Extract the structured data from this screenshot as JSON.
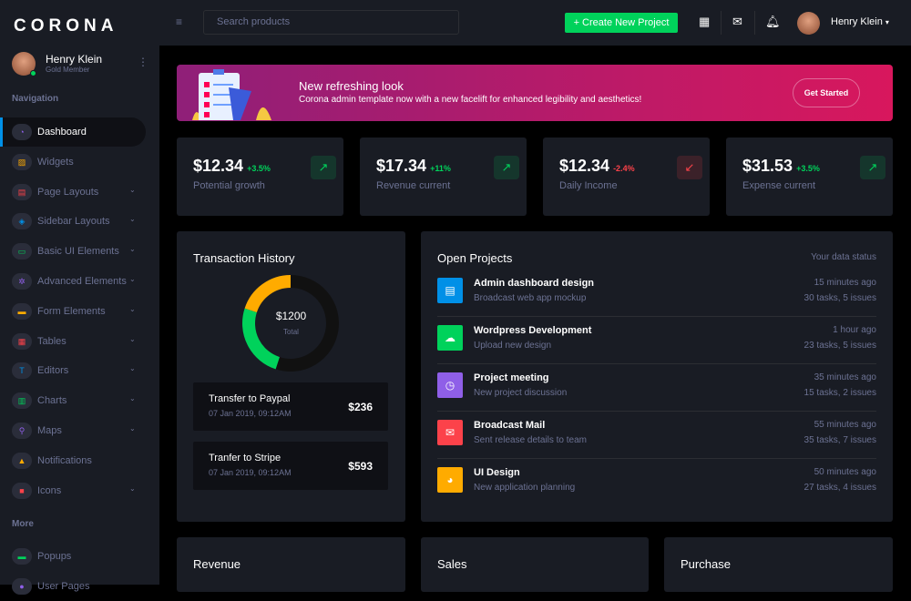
{
  "brand": "CORONA",
  "profile": {
    "name": "Henry Klein",
    "role": "Gold Member"
  },
  "sidebar": {
    "nav_heading": "Navigation",
    "more_heading": "More",
    "items": [
      {
        "label": "Dashboard",
        "icon": "speedometer-icon",
        "color": "#8f5fe8",
        "chevron": false
      },
      {
        "label": "Widgets",
        "icon": "widgets-icon",
        "color": "#ffab00",
        "chevron": false
      },
      {
        "label": "Page Layouts",
        "icon": "page-layout-icon",
        "color": "#fc424a",
        "chevron": true
      },
      {
        "label": "Sidebar Layouts",
        "icon": "sidebar-layout-icon",
        "color": "#0090e7",
        "chevron": true
      },
      {
        "label": "Basic UI Elements",
        "icon": "laptop-icon",
        "color": "#00d25b",
        "chevron": true
      },
      {
        "label": "Advanced Elements",
        "icon": "gear-icon",
        "color": "#8f5fe8",
        "chevron": true
      },
      {
        "label": "Form Elements",
        "icon": "form-icon",
        "color": "#ffab00",
        "chevron": true
      },
      {
        "label": "Tables",
        "icon": "table-icon",
        "color": "#fc424a",
        "chevron": true
      },
      {
        "label": "Editors",
        "icon": "text-editor-icon",
        "color": "#0090e7",
        "chevron": true
      },
      {
        "label": "Charts",
        "icon": "chart-icon",
        "color": "#00d25b",
        "chevron": true
      },
      {
        "label": "Maps",
        "icon": "map-pin-icon",
        "color": "#8f5fe8",
        "chevron": true
      },
      {
        "label": "Notifications",
        "icon": "bell-icon",
        "color": "#ffab00",
        "chevron": false
      },
      {
        "label": "Icons",
        "icon": "icons-icon",
        "color": "#fc424a",
        "chevron": true
      }
    ],
    "more_items": [
      {
        "label": "Popups",
        "icon": "chat-icon",
        "color": "#00d25b"
      },
      {
        "label": "User Pages",
        "icon": "user-icon",
        "color": "#8f5fe8"
      }
    ]
  },
  "topbar": {
    "search_placeholder": "Search products",
    "create_label": "+ Create New Project",
    "user": "Henry Klein"
  },
  "banner": {
    "title": "New refreshing look",
    "subtitle": "Corona admin template now with a new facelift for enhanced legibility and aesthetics!",
    "button": "Get Started"
  },
  "stats": [
    {
      "value": "$12.34",
      "change": "+3.5%",
      "label": "Potential growth",
      "trend": "up"
    },
    {
      "value": "$17.34",
      "change": "+11%",
      "label": "Revenue current",
      "trend": "up"
    },
    {
      "value": "$12.34",
      "change": "-2.4%",
      "label": "Daily Income",
      "trend": "down"
    },
    {
      "value": "$31.53",
      "change": "+3.5%",
      "label": "Expense current",
      "trend": "up"
    }
  ],
  "transactions": {
    "title": "Transaction History",
    "total": "$1200",
    "total_label": "Total",
    "donut": [
      {
        "share": 0.2,
        "color": "#ffab00"
      },
      {
        "share": 0.25,
        "color": "#00d25b"
      },
      {
        "share": 0.55,
        "color": "#111111"
      }
    ],
    "items": [
      {
        "title": "Transfer to Paypal",
        "date": "07 Jan 2019, 09:12AM",
        "amount": "$236"
      },
      {
        "title": "Tranfer to Stripe",
        "date": "07 Jan 2019, 09:12AM",
        "amount": "$593"
      }
    ]
  },
  "projects": {
    "title": "Open Projects",
    "status": "Your data status",
    "items": [
      {
        "title": "Admin dashboard design",
        "sub": "Broadcast web app mockup",
        "time": "15 minutes ago",
        "tasks": "30 tasks, 5 issues",
        "icon": "file-icon",
        "color": "#0090e7"
      },
      {
        "title": "Wordpress Development",
        "sub": "Upload new design",
        "time": "1 hour ago",
        "tasks": "23 tasks, 5 issues",
        "icon": "cloud-upload-icon",
        "color": "#00d25b"
      },
      {
        "title": "Project meeting",
        "sub": "New project discussion",
        "time": "35 minutes ago",
        "tasks": "15 tasks, 2 issues",
        "icon": "clock-icon",
        "color": "#8f5fe8"
      },
      {
        "title": "Broadcast Mail",
        "sub": "Sent release details to team",
        "time": "55 minutes ago",
        "tasks": "35 tasks, 7 issues",
        "icon": "mail-icon",
        "color": "#fc424a"
      },
      {
        "title": "UI Design",
        "sub": "New application planning",
        "time": "50 minutes ago",
        "tasks": "27 tasks, 4 issues",
        "icon": "pie-chart-icon",
        "color": "#ffab00"
      }
    ]
  },
  "bottom": {
    "revenue": "Revenue",
    "sales": "Sales",
    "purchase": "Purchase"
  }
}
